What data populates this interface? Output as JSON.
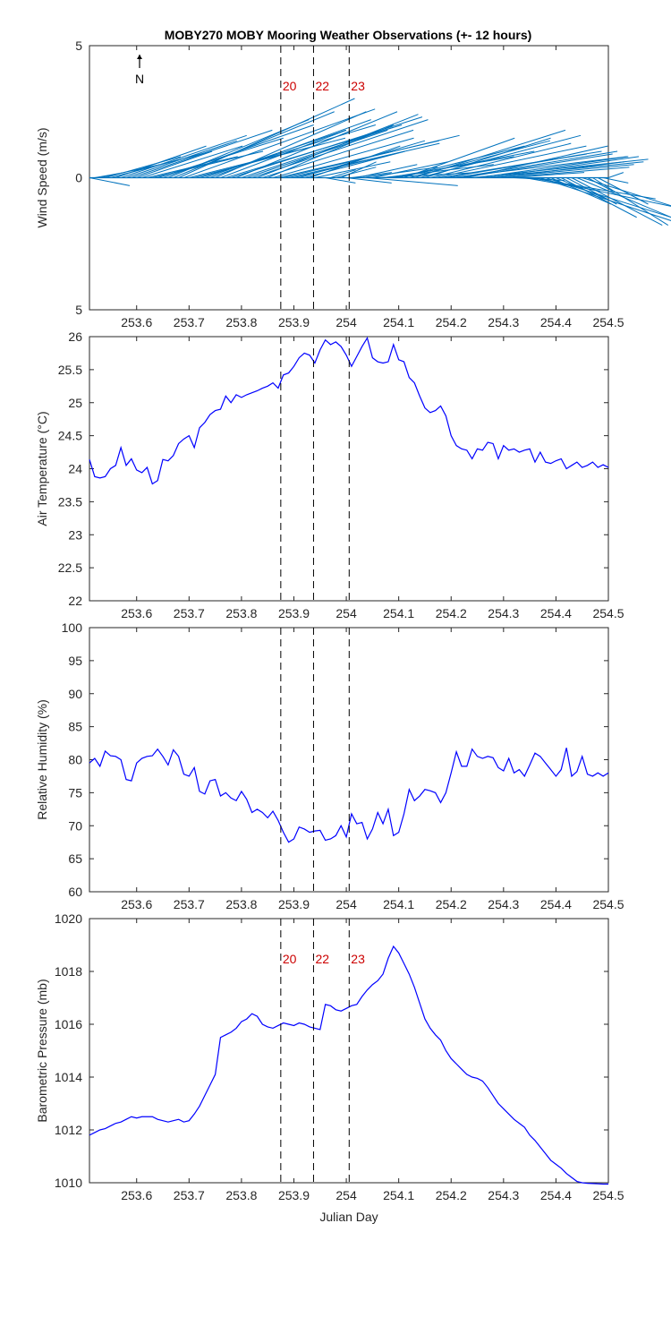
{
  "title": "MOBY270 MOBY Mooring Weather Observations (+- 12 hours)",
  "colors": {
    "wind": "#0072bd",
    "series": "#0000ff",
    "marker_text": "#cc0000",
    "axis": "#262626"
  },
  "north_label": "N",
  "markers": [
    {
      "label": "20",
      "x": 253.875
    },
    {
      "label": "22",
      "x": 253.9375
    },
    {
      "label": "23",
      "x": 254.0055
    }
  ],
  "chart_data": [
    {
      "type": "quiver",
      "name": "wind",
      "ylabel": "Wind Speed (m/s)",
      "xlim": [
        253.51,
        254.5
      ],
      "ylim": [
        -5,
        5
      ],
      "xticks": [
        253.6,
        253.7,
        253.8,
        253.9,
        254,
        254.1,
        254.2,
        254.3,
        254.4,
        254.5
      ],
      "yticks": [
        5,
        0,
        5
      ],
      "ytick_values": [
        5,
        0,
        -5
      ],
      "show_marker_labels": true,
      "x": [
        253.51,
        253.52,
        253.53,
        253.54,
        253.55,
        253.56,
        253.57,
        253.58,
        253.59,
        253.6,
        253.61,
        253.62,
        253.63,
        253.64,
        253.65,
        253.66,
        253.67,
        253.68,
        253.69,
        253.7,
        253.71,
        253.72,
        253.73,
        253.74,
        253.75,
        253.76,
        253.77,
        253.78,
        253.79,
        253.8,
        253.81,
        253.82,
        253.83,
        253.84,
        253.85,
        253.86,
        253.87,
        253.88,
        253.89,
        253.9,
        253.91,
        253.92,
        253.93,
        253.94,
        253.95,
        253.96,
        253.97,
        253.98,
        253.99,
        254.0,
        254.01,
        254.02,
        254.03,
        254.04,
        254.05,
        254.06,
        254.07,
        254.08,
        254.09,
        254.1,
        254.11,
        254.12,
        254.13,
        254.14,
        254.15,
        254.16,
        254.17,
        254.18,
        254.19,
        254.2,
        254.21,
        254.22,
        254.23,
        254.24,
        254.25,
        254.26,
        254.27,
        254.28,
        254.29,
        254.3,
        254.31,
        254.32,
        254.33,
        254.34,
        254.35,
        254.36,
        254.37,
        254.38,
        254.39,
        254.4,
        254.41,
        254.42,
        254.43,
        254.44,
        254.45,
        254.46,
        254.47,
        254.48,
        254.49,
        254.5
      ],
      "u": [
        0.8,
        0.6,
        1.2,
        1.5,
        2.0,
        1.8,
        2.5,
        2.2,
        2.8,
        1.5,
        2.0,
        1.8,
        2.2,
        2.5,
        3.0,
        2.8,
        3.2,
        3.5,
        3.8,
        2.5,
        3.0,
        3.5,
        2.8,
        3.2,
        3.0,
        2.5,
        3.5,
        3.8,
        3.2,
        3.0,
        2.8,
        3.5,
        3.2,
        3.0,
        2.5,
        2.8,
        3.2,
        3.5,
        3.0,
        2.2,
        2.5,
        2.0,
        1.8,
        1.5,
        1.0,
        0.6,
        0.5,
        0.8,
        0.7,
        0.9,
        0.8,
        1.2,
        1.5,
        1.8,
        1.5,
        2.0,
        2.2,
        2.5,
        2.8,
        2.5,
        2.2,
        2.8,
        3.0,
        3.2,
        2.5,
        2.8,
        3.0,
        3.2,
        2.8,
        3.5,
        3.2,
        3.0,
        2.8,
        3.5,
        3.0,
        3.2,
        3.0,
        2.8,
        2.5,
        2.5,
        1.5,
        1.0,
        0.8,
        1.5,
        2.5,
        3.0,
        4.0,
        3.5,
        1.2,
        1.0,
        1.5,
        1.0,
        1.8,
        2.0,
        2.5,
        0.5,
        1.5,
        1.0,
        0.5,
        0.3
      ],
      "v": [
        -0.3,
        0.2,
        0.5,
        0.8,
        1.0,
        1.2,
        1.6,
        1.4,
        1.8,
        1.0,
        1.2,
        0.8,
        1.0,
        1.5,
        2.0,
        2.2,
        2.5,
        3.0,
        2.6,
        1.2,
        1.5,
        2.0,
        1.8,
        2.2,
        2.5,
        1.8,
        2.0,
        2.3,
        2.5,
        1.9,
        1.8,
        2.2,
        2.4,
        1.8,
        2.0,
        1.5,
        1.4,
        1.6,
        1.3,
        1.0,
        1.4,
        1.0,
        1.2,
        0.6,
        0.0,
        -0.2,
        0.3,
        0.4,
        0.6,
        -0.2,
        0.2,
        0.5,
        0.4,
        -0.3,
        0.6,
        0.2,
        0.5,
        0.8,
        1.0,
        1.2,
        1.5,
        1.4,
        1.8,
        1.6,
        1.5,
        1.3,
        1.2,
        1.0,
        0.9,
        0.8,
        1.0,
        0.9,
        1.2,
        0.7,
        0.8,
        0.6,
        0.8,
        0.5,
        0.6,
        0.4,
        0.2,
        -0.1,
        -0.1,
        -0.5,
        -0.8,
        -1.2,
        -2.5,
        -2.1,
        -1.0,
        -0.8,
        -1.5,
        -1.0,
        -1.8,
        -1.6,
        -1.5,
        -0.5,
        -1.8,
        -1.0,
        -0.2,
        0.2
      ]
    },
    {
      "type": "line",
      "name": "air-temperature",
      "ylabel": "Air Temperature (°C)",
      "xlim": [
        253.51,
        254.5
      ],
      "ylim": [
        22,
        26
      ],
      "xticks": [
        253.6,
        253.7,
        253.8,
        253.9,
        254,
        254.1,
        254.2,
        254.3,
        254.4,
        254.5
      ],
      "yticks": [
        22,
        22.5,
        23,
        23.5,
        24,
        24.5,
        25,
        25.5,
        26
      ],
      "show_marker_labels": false,
      "x": [
        253.51,
        253.52,
        253.53,
        253.54,
        253.55,
        253.56,
        253.57,
        253.58,
        253.59,
        253.6,
        253.61,
        253.62,
        253.63,
        253.64,
        253.65,
        253.66,
        253.67,
        253.68,
        253.69,
        253.7,
        253.71,
        253.72,
        253.73,
        253.74,
        253.75,
        253.76,
        253.77,
        253.78,
        253.79,
        253.8,
        253.81,
        253.82,
        253.83,
        253.84,
        253.85,
        253.86,
        253.87,
        253.88,
        253.89,
        253.9,
        253.91,
        253.92,
        253.93,
        253.94,
        253.95,
        253.96,
        253.97,
        253.98,
        253.99,
        254.0,
        254.01,
        254.02,
        254.03,
        254.04,
        254.05,
        254.06,
        254.07,
        254.08,
        254.09,
        254.1,
        254.11,
        254.12,
        254.13,
        254.14,
        254.15,
        254.16,
        254.17,
        254.18,
        254.19,
        254.2,
        254.21,
        254.22,
        254.23,
        254.24,
        254.25,
        254.26,
        254.27,
        254.28,
        254.29,
        254.3,
        254.31,
        254.32,
        254.33,
        254.34,
        254.35,
        254.36,
        254.37,
        254.38,
        254.39,
        254.4,
        254.41,
        254.42,
        254.43,
        254.44,
        254.45,
        254.46,
        254.47,
        254.48,
        254.49,
        254.5
      ],
      "y": [
        24.14,
        23.88,
        23.86,
        23.88,
        24.0,
        24.05,
        24.32,
        24.05,
        24.15,
        23.98,
        23.94,
        24.02,
        23.77,
        23.82,
        24.14,
        24.12,
        24.2,
        24.38,
        24.45,
        24.5,
        24.32,
        24.62,
        24.7,
        24.82,
        24.88,
        24.9,
        25.1,
        25.0,
        25.12,
        25.08,
        25.12,
        25.15,
        25.18,
        25.22,
        25.25,
        25.3,
        25.22,
        25.42,
        25.45,
        25.55,
        25.68,
        25.75,
        25.72,
        25.6,
        25.8,
        25.95,
        25.88,
        25.92,
        25.85,
        25.72,
        25.55,
        25.7,
        25.85,
        25.98,
        25.68,
        25.62,
        25.6,
        25.62,
        25.88,
        25.65,
        25.62,
        25.38,
        25.3,
        25.1,
        24.92,
        24.85,
        24.88,
        24.95,
        24.8,
        24.5,
        24.35,
        24.3,
        24.28,
        24.15,
        24.3,
        24.28,
        24.4,
        24.38,
        24.15,
        24.35,
        24.28,
        24.3,
        24.25,
        24.28,
        24.3,
        24.1,
        24.25,
        24.1,
        24.08,
        24.12,
        24.15,
        24.0,
        24.05,
        24.1,
        24.02,
        24.05,
        24.1,
        24.02,
        24.06,
        24.02
      ]
    },
    {
      "type": "line",
      "name": "relative-humidity",
      "ylabel": "Relative Humidity (%)",
      "xlim": [
        253.51,
        254.5
      ],
      "ylim": [
        60,
        100
      ],
      "xticks": [
        253.6,
        253.7,
        253.8,
        253.9,
        254,
        254.1,
        254.2,
        254.3,
        254.4,
        254.5
      ],
      "yticks": [
        60,
        65,
        70,
        75,
        80,
        85,
        90,
        95,
        100
      ],
      "show_marker_labels": false,
      "x": [
        253.51,
        253.52,
        253.53,
        253.54,
        253.55,
        253.56,
        253.57,
        253.58,
        253.59,
        253.6,
        253.61,
        253.62,
        253.63,
        253.64,
        253.65,
        253.66,
        253.67,
        253.68,
        253.69,
        253.7,
        253.71,
        253.72,
        253.73,
        253.74,
        253.75,
        253.76,
        253.77,
        253.78,
        253.79,
        253.8,
        253.81,
        253.82,
        253.83,
        253.84,
        253.85,
        253.86,
        253.87,
        253.88,
        253.89,
        253.9,
        253.91,
        253.92,
        253.93,
        253.94,
        253.95,
        253.96,
        253.97,
        253.98,
        253.99,
        254.0,
        254.01,
        254.02,
        254.03,
        254.04,
        254.05,
        254.06,
        254.07,
        254.08,
        254.09,
        254.1,
        254.11,
        254.12,
        254.13,
        254.14,
        254.15,
        254.16,
        254.17,
        254.18,
        254.19,
        254.2,
        254.21,
        254.22,
        254.23,
        254.24,
        254.25,
        254.26,
        254.27,
        254.28,
        254.29,
        254.3,
        254.31,
        254.32,
        254.33,
        254.34,
        254.35,
        254.36,
        254.37,
        254.38,
        254.39,
        254.4,
        254.41,
        254.42,
        254.43,
        254.44,
        254.45,
        254.46,
        254.47,
        254.48,
        254.49,
        254.5
      ],
      "y": [
        79.5,
        80.2,
        79.0,
        81.3,
        80.6,
        80.5,
        80.0,
        77.0,
        76.8,
        79.5,
        80.2,
        80.5,
        80.6,
        81.6,
        80.5,
        79.2,
        81.5,
        80.5,
        77.8,
        77.5,
        78.8,
        75.2,
        74.8,
        76.8,
        77.0,
        74.5,
        75.0,
        74.2,
        73.8,
        75.2,
        74.0,
        72.0,
        72.5,
        72.0,
        71.2,
        72.2,
        70.8,
        69.0,
        67.5,
        68.0,
        69.8,
        69.5,
        69.0,
        69.2,
        69.3,
        67.8,
        68.0,
        68.5,
        70.0,
        68.3,
        71.8,
        70.3,
        70.5,
        68.0,
        69.5,
        72.0,
        70.3,
        72.5,
        68.5,
        69.0,
        71.8,
        75.5,
        73.8,
        74.5,
        75.5,
        75.3,
        75.0,
        73.5,
        75.0,
        78.0,
        81.2,
        79.0,
        79.0,
        81.6,
        80.5,
        80.2,
        80.5,
        80.3,
        78.8,
        78.3,
        80.2,
        78.0,
        78.5,
        77.5,
        79.2,
        81.0,
        80.5,
        79.5,
        78.5,
        77.5,
        78.5,
        81.8,
        77.5,
        78.2,
        80.5,
        77.8,
        77.5,
        78.0,
        77.5,
        78.0
      ]
    },
    {
      "type": "line",
      "name": "barometric-pressure",
      "ylabel": "Barometric Pressure (mb)",
      "xlabel": "Julian Day",
      "xlim": [
        253.51,
        254.5
      ],
      "ylim": [
        1010,
        1020
      ],
      "xticks": [
        253.6,
        253.7,
        253.8,
        253.9,
        254,
        254.1,
        254.2,
        254.3,
        254.4,
        254.5
      ],
      "yticks": [
        1010,
        1012,
        1014,
        1016,
        1018,
        1020
      ],
      "show_marker_labels": true,
      "x": [
        253.51,
        253.52,
        253.53,
        253.54,
        253.55,
        253.56,
        253.57,
        253.58,
        253.59,
        253.6,
        253.61,
        253.62,
        253.63,
        253.64,
        253.65,
        253.66,
        253.67,
        253.68,
        253.69,
        253.7,
        253.71,
        253.72,
        253.73,
        253.74,
        253.75,
        253.76,
        253.77,
        253.78,
        253.79,
        253.8,
        253.81,
        253.82,
        253.83,
        253.84,
        253.85,
        253.86,
        253.87,
        253.88,
        253.89,
        253.9,
        253.91,
        253.92,
        253.93,
        253.94,
        253.95,
        253.96,
        253.97,
        253.98,
        253.99,
        254.0,
        254.01,
        254.02,
        254.03,
        254.04,
        254.05,
        254.06,
        254.07,
        254.08,
        254.09,
        254.1,
        254.11,
        254.12,
        254.13,
        254.14,
        254.15,
        254.16,
        254.17,
        254.18,
        254.19,
        254.2,
        254.21,
        254.22,
        254.23,
        254.24,
        254.25,
        254.26,
        254.27,
        254.28,
        254.29,
        254.3,
        254.31,
        254.32,
        254.33,
        254.34,
        254.35,
        254.36,
        254.37,
        254.38,
        254.39,
        254.4,
        254.41,
        254.42,
        254.43,
        254.44,
        254.45,
        254.46,
        254.47,
        254.48,
        254.49,
        254.5
      ],
      "y": [
        1011.8,
        1011.9,
        1012.0,
        1012.05,
        1012.15,
        1012.25,
        1012.3,
        1012.4,
        1012.5,
        1012.45,
        1012.5,
        1012.5,
        1012.5,
        1012.4,
        1012.35,
        1012.3,
        1012.35,
        1012.4,
        1012.3,
        1012.35,
        1012.6,
        1012.9,
        1013.3,
        1013.7,
        1014.1,
        1015.5,
        1015.6,
        1015.7,
        1015.85,
        1016.1,
        1016.2,
        1016.4,
        1016.3,
        1016.0,
        1015.9,
        1015.85,
        1015.95,
        1016.05,
        1016.0,
        1015.95,
        1016.05,
        1016.0,
        1015.9,
        1015.85,
        1015.8,
        1016.75,
        1016.7,
        1016.55,
        1016.5,
        1016.6,
        1016.7,
        1016.75,
        1017.05,
        1017.3,
        1017.5,
        1017.65,
        1017.9,
        1018.5,
        1018.95,
        1018.7,
        1018.3,
        1017.9,
        1017.4,
        1016.8,
        1016.2,
        1015.85,
        1015.6,
        1015.4,
        1015.0,
        1014.7,
        1014.5,
        1014.3,
        1014.1,
        1014.0,
        1013.95,
        1013.85,
        1013.6,
        1013.3,
        1013.0,
        1012.8,
        1012.6,
        1012.4,
        1012.25,
        1012.1,
        1011.8,
        1011.6,
        1011.35,
        1011.1,
        1010.85,
        1010.7,
        1010.55,
        1010.35,
        1010.2,
        1010.05,
        1010.0,
        1009.98,
        1009.97,
        1009.96,
        1009.95,
        1009.95
      ]
    }
  ]
}
